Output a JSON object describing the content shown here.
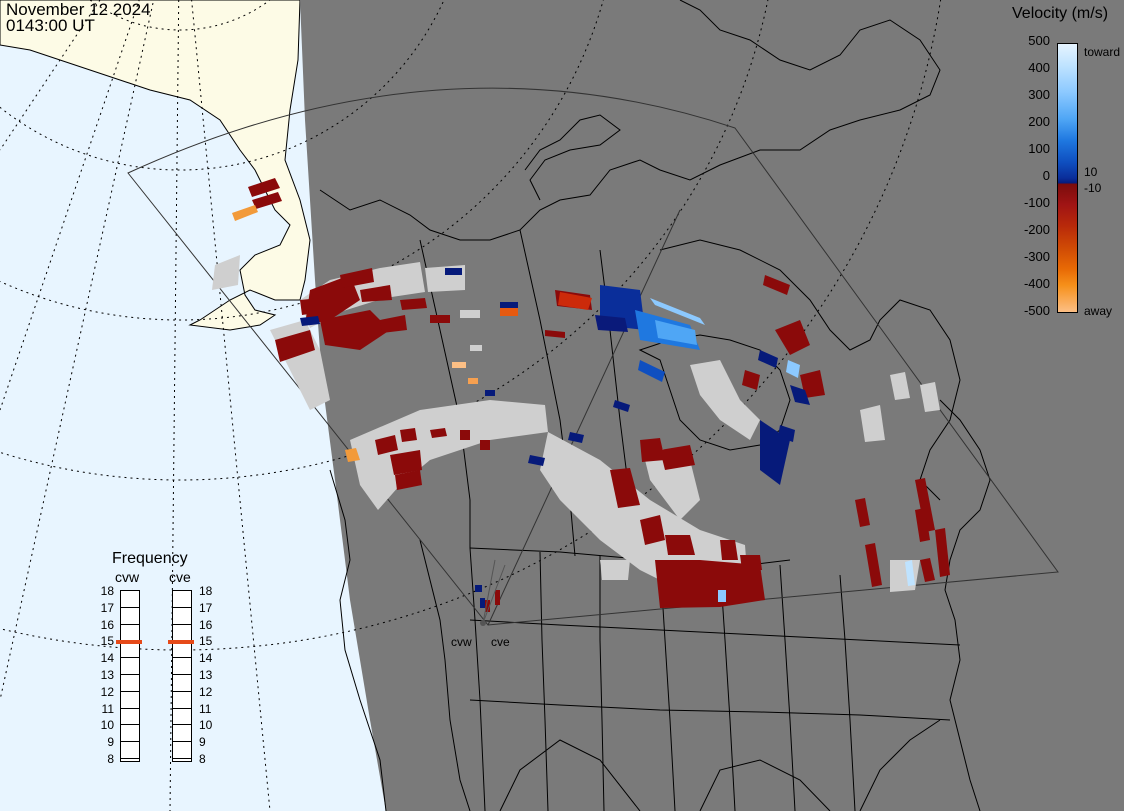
{
  "header": {
    "date": "November 12 2024",
    "time": "0143:00 UT"
  },
  "colorbar": {
    "title": "Velocity (m/s)",
    "ticks": [
      "500",
      "400",
      "300",
      "200",
      "100",
      "0",
      "-100",
      "-200",
      "-300",
      "-400",
      "-500"
    ],
    "side_ticks": [
      "10",
      "-10"
    ],
    "toward_label": "toward",
    "away_label": "away",
    "colors": [
      "#e6f4ff",
      "#bfe3ff",
      "#8cc9ff",
      "#4fa6f5",
      "#1f78e0",
      "#0f4fc0",
      "#0a2e9a",
      "#061a7a",
      "#7a0c0c",
      "#a01414",
      "#b92a0a",
      "#cf4a05",
      "#e86a05",
      "#f6901a",
      "#fcbf85"
    ]
  },
  "frequency": {
    "title": "Frequency",
    "radars": [
      "cvw",
      "cve"
    ],
    "scale": [
      "18",
      "17",
      "16",
      "15",
      "14",
      "13",
      "12",
      "11",
      "10",
      "9",
      "8"
    ],
    "current_mhz": [
      15,
      15
    ],
    "marker_color": "#e64a19"
  },
  "map": {
    "radar_site_labels": [
      "cvw",
      "cve"
    ],
    "ocean_color": "#e8f5ff",
    "night_color": "#7a7a7a",
    "land_day_color": "#fdfbe6",
    "ground_scatter_color": "#cfcfcf"
  }
}
